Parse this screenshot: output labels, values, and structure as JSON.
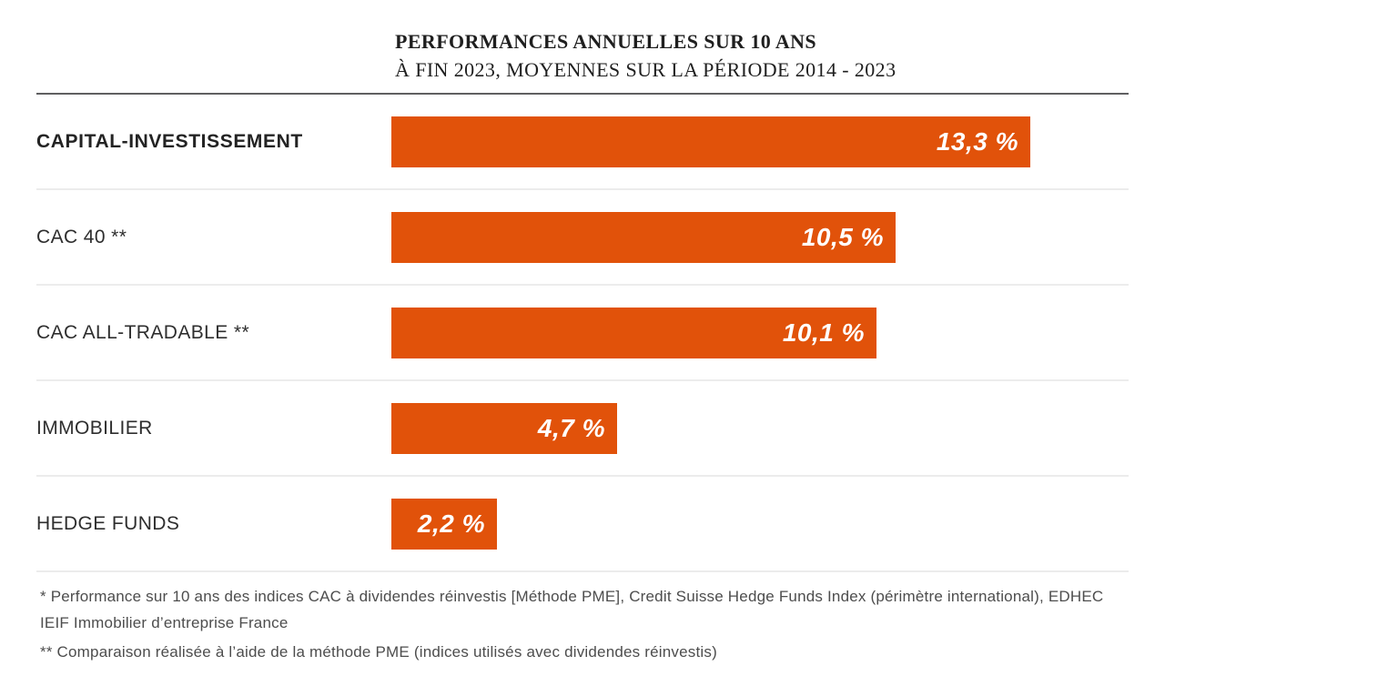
{
  "chart_data": {
    "type": "bar",
    "orientation": "horizontal",
    "title": "PERFORMANCES ANNUELLES SUR 10 ANS",
    "subtitle": "À FIN 2023, MOYENNES SUR LA PÉRIODE 2014 - 2023",
    "categories": [
      "CAPITAL-INVESTISSEMENT",
      "CAC 40 **",
      "CAC ALL-TRADABLE **",
      "IMMOBILIER",
      "HEDGE FUNDS"
    ],
    "values": [
      13.3,
      10.5,
      10.1,
      4.7,
      2.2
    ],
    "value_labels": [
      "13,3 %",
      "10,5 %",
      "10,1 %",
      "4,7 %",
      "2,2 %"
    ],
    "xlim": [
      0,
      13.3
    ],
    "bar_color": "#E1520A",
    "grid": false,
    "legend": "none",
    "footnotes": [
      "* Performance sur 10 ans des indices CAC à dividendes réinvestis [Méthode PME], Credit Suisse Hedge Funds Index (périmètre international), EDHEC IEIF Immobilier d’entreprise France",
      "** Comparaison réalisée à l’aide de la méthode PME (indices utilisés avec dividendes réinvestis)"
    ]
  }
}
